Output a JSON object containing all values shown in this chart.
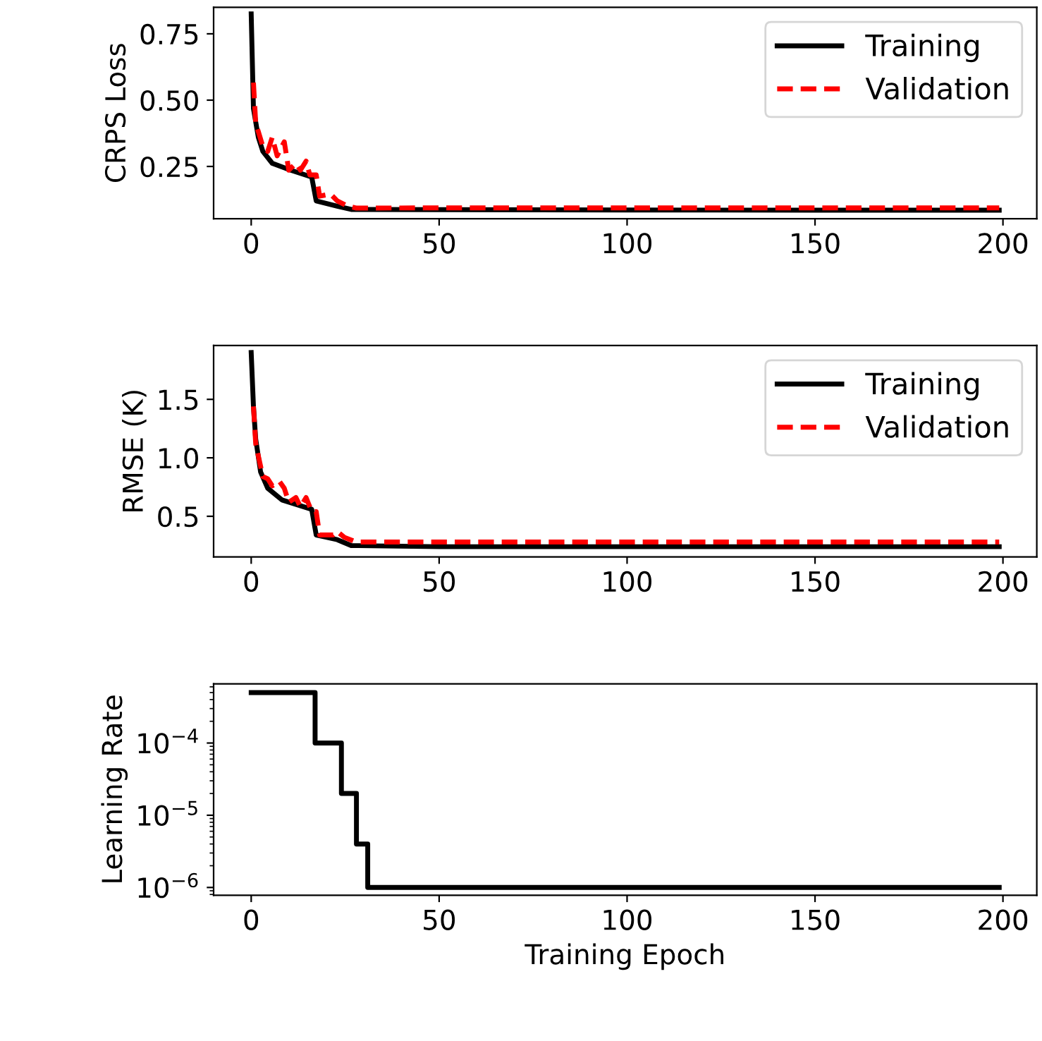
{
  "chart_data": [
    {
      "type": "line",
      "ylabel": "CRPS Loss",
      "xlim": [
        -10,
        209
      ],
      "xticks": [
        0,
        50,
        100,
        150,
        200
      ],
      "ylim": [
        0.053,
        0.85
      ],
      "yticks": [
        0.25,
        {
          "value": 0.5,
          "label": "0.50"
        },
        0.75
      ],
      "grid": false,
      "legend": "top right",
      "series": [
        {
          "name": "Training",
          "color": "#000000",
          "line_style": "solid",
          "x": [
            0,
            0.6,
            1.9,
            3.1,
            5.6,
            10.5,
            16.1,
            17.3,
            22.9,
            26.6,
            50,
            100,
            150,
            199
          ],
          "values": [
            0.825,
            0.468,
            0.36,
            0.307,
            0.262,
            0.236,
            0.21,
            0.12,
            0.1,
            0.088,
            0.087,
            0.086,
            0.085,
            0.085
          ]
        },
        {
          "name": "Validation",
          "color": "#ff0000",
          "line_style": "dashed",
          "x": [
            0.6,
            1.2,
            3.1,
            4.4,
            5.6,
            6.9,
            8.8,
            10,
            11.9,
            13.1,
            14.6,
            15.6,
            17.3,
            18.2,
            21.1,
            22.9,
            25.4,
            28,
            50,
            100,
            150,
            199
          ],
          "values": [
            0.566,
            0.414,
            0.325,
            0.307,
            0.36,
            0.29,
            0.343,
            0.236,
            0.262,
            0.236,
            0.27,
            0.218,
            0.218,
            0.138,
            0.146,
            0.12,
            0.102,
            0.093,
            0.094,
            0.094,
            0.094,
            0.094
          ]
        }
      ]
    },
    {
      "type": "line",
      "ylabel": "RMSE (K)",
      "xlim": [
        -10,
        209
      ],
      "xticks": [
        0,
        50,
        100,
        150,
        200
      ],
      "ylim": [
        0.152,
        1.96
      ],
      "yticks": [
        0.5,
        {
          "value": 1.0,
          "label": "1.0"
        },
        1.5
      ],
      "grid": false,
      "legend": "top right",
      "series": [
        {
          "name": "Training",
          "color": "#000000",
          "line_style": "solid",
          "x": [
            0,
            0.6,
            1.2,
            2.5,
            4.4,
            8.2,
            16.1,
            17.3,
            22.9,
            26.6,
            50,
            100,
            150,
            199
          ],
          "values": [
            1.9,
            1.44,
            1.16,
            0.88,
            0.74,
            0.64,
            0.56,
            0.34,
            0.3,
            0.25,
            0.24,
            0.24,
            0.24,
            0.24
          ]
        },
        {
          "name": "Validation",
          "color": "#ff0000",
          "line_style": "dashed",
          "x": [
            0.6,
            1.2,
            3.1,
            4.4,
            5.6,
            7.5,
            8.8,
            10,
            11.9,
            13.1,
            14.6,
            16.1,
            17.3,
            18.2,
            21.8,
            22.9,
            24.8,
            28,
            50,
            100,
            150,
            199
          ],
          "values": [
            1.44,
            1.12,
            0.84,
            0.82,
            0.76,
            0.8,
            0.74,
            0.62,
            0.66,
            0.58,
            0.66,
            0.54,
            0.54,
            0.34,
            0.34,
            0.37,
            0.32,
            0.28,
            0.28,
            0.28,
            0.28,
            0.28
          ]
        }
      ]
    },
    {
      "type": "step",
      "ylabel": "Learning Rate",
      "xlabel": "Training Epoch",
      "log": "y",
      "xlim": [
        -10,
        209
      ],
      "xticks": [
        0,
        50,
        100,
        150,
        200
      ],
      "ylim": [
        7.8e-07,
        0.00066
      ],
      "yticks": [
        {
          "value": 1e-06,
          "label": "10$^{−6}$"
        },
        {
          "value": 1e-05,
          "label": "10$^{−5}$"
        },
        {
          "value": 0.0001,
          "label": "10$^{−4}$"
        }
      ],
      "grid": false,
      "series": [
        {
          "color": "#000000",
          "line_style": "solid",
          "x": [
            0,
            17,
            24,
            28,
            31,
            199
          ],
          "values": [
            0.0005,
            0.0001,
            2e-05,
            4e-06,
            1e-06,
            1e-06
          ]
        }
      ]
    }
  ]
}
